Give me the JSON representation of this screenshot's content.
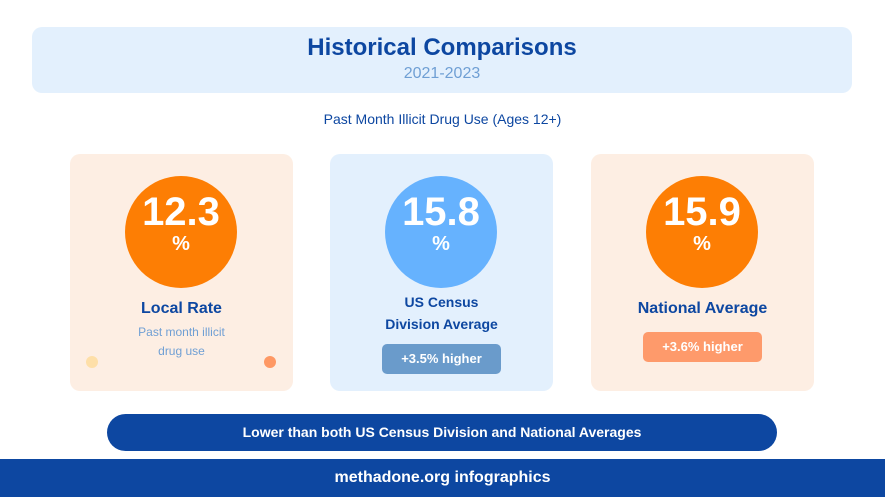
{
  "header": {
    "title": "Historical Comparisons",
    "subtitle": "2021-2023"
  },
  "metric_label": "Past Month Illicit Drug Use (Ages 12+)",
  "cards": [
    {
      "value": "12.3",
      "unit": "%",
      "title": "Local Rate",
      "description_line1": "Past month illicit",
      "description_line2": "drug use",
      "circle_color": "#fd7e04"
    },
    {
      "value": "15.8",
      "unit": "%",
      "title_line1": "US Census",
      "title_line2": "Division Average",
      "badge": "+3.5% higher",
      "circle_color": "#66b2fe"
    },
    {
      "value": "15.9",
      "unit": "%",
      "title": "National Average",
      "badge": "+3.6% higher",
      "circle_color": "#fd7e04"
    }
  ],
  "banner": "Lower than both US Census Division and National Averages",
  "footer": "methadone.org infographics",
  "colors": {
    "primary": "#0d47a1",
    "orange": "#fd7e04",
    "light_blue": "#66b2fe",
    "warm_bg": "#fdeee3",
    "cool_bg": "#e3f0fd"
  }
}
